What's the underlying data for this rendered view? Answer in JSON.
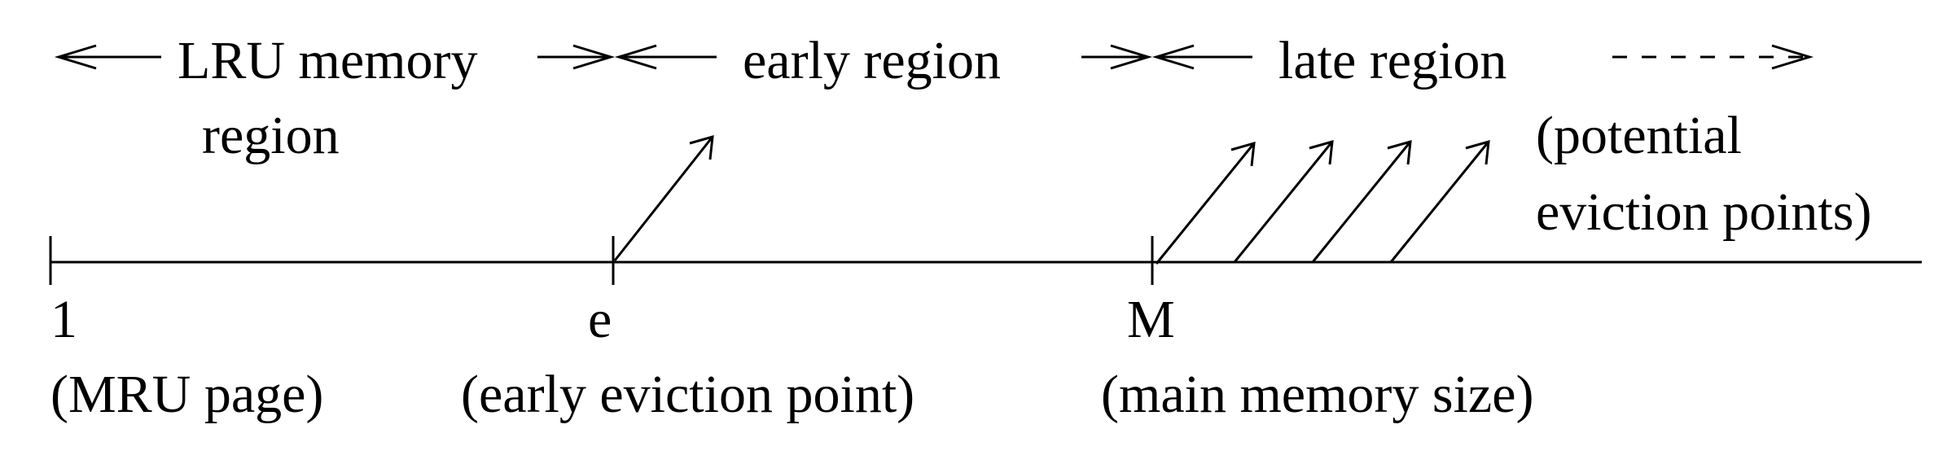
{
  "diagram": {
    "regions": {
      "lru": {
        "line1": "LRU memory",
        "line2": "region"
      },
      "early": {
        "label": "early region"
      },
      "late": {
        "label": "late region"
      }
    },
    "potential": {
      "line1": "(potential",
      "line2": "eviction points)"
    },
    "axis_points": [
      {
        "symbol": "1",
        "caption": "(MRU page)"
      },
      {
        "symbol": "e",
        "caption": "(early eviction point)"
      },
      {
        "symbol": "M",
        "caption": "(main memory size)"
      }
    ],
    "late_region_eviction_arrow_count": 4
  }
}
